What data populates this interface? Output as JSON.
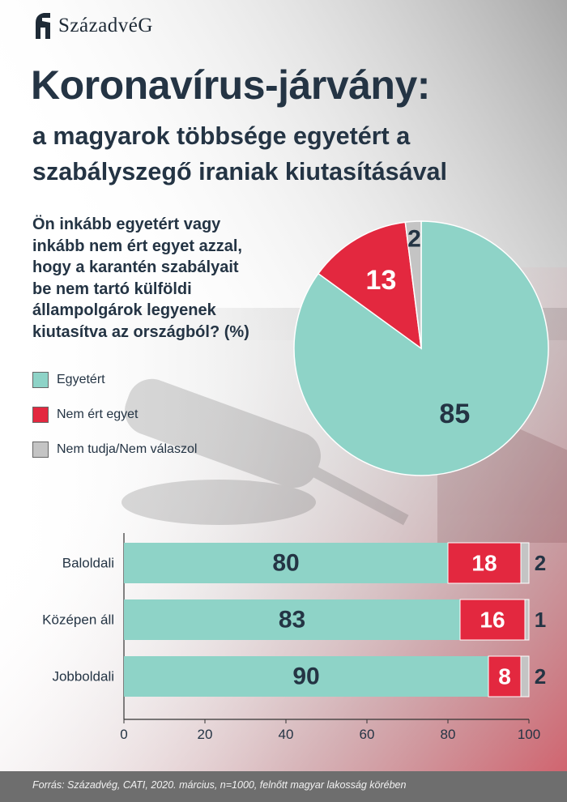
{
  "logo": {
    "text": "SzázadvéG",
    "icon": "helmet-icon"
  },
  "header": {
    "title": "Koronavírus-járvány:",
    "subtitle_line1": "a magyarok többsége egyetért a",
    "subtitle_line2": "szabályszegő iraniak kiutasításával"
  },
  "question": {
    "lines": [
      "Ön inkább egyetért vagy",
      "inkább nem ért egyet azzal,",
      "hogy a karantén szabályait",
      "be nem tartó külföldi",
      "állampolgárok legyenek",
      "kiutasítva az országból? (%)"
    ]
  },
  "colors": {
    "agree": "#8ed3c7",
    "disagree": "#e3283f",
    "dontknow": "#c4c4c4",
    "text": "#243444"
  },
  "chart_data": [
    {
      "type": "pie",
      "slices": [
        {
          "label": "Egyetért",
          "value": 85,
          "color": "#8ed3c7"
        },
        {
          "label": "Nem ért egyet",
          "value": 13,
          "color": "#e3283f"
        },
        {
          "label": "Nem tudja/Nem válaszol",
          "value": 2,
          "color": "#c4c4c4"
        }
      ],
      "legend": [
        "Egyetért",
        "Nem ért egyet",
        "Nem tudja/Nem válaszol"
      ]
    },
    {
      "type": "bar",
      "orientation": "horizontal",
      "stacked": true,
      "categories": [
        "Baloldali",
        "Középen áll",
        "Jobboldali"
      ],
      "series": [
        {
          "name": "Egyetért",
          "values": [
            80,
            83,
            90
          ],
          "color": "#8ed3c7"
        },
        {
          "name": "Nem ért egyet",
          "values": [
            18,
            16,
            8
          ],
          "color": "#e3283f"
        },
        {
          "name": "Nem tudja/Nem válaszol",
          "values": [
            2,
            1,
            2
          ],
          "color": "#c4c4c4"
        }
      ],
      "xlim": [
        0,
        100
      ],
      "xticks": [
        "0",
        "20",
        "40",
        "60",
        "80",
        "100"
      ],
      "grid": false
    }
  ],
  "footer": {
    "source": "Forrás: Századvég, CATI, 2020. március, n=1000, felnőtt magyar lakosság körében"
  }
}
